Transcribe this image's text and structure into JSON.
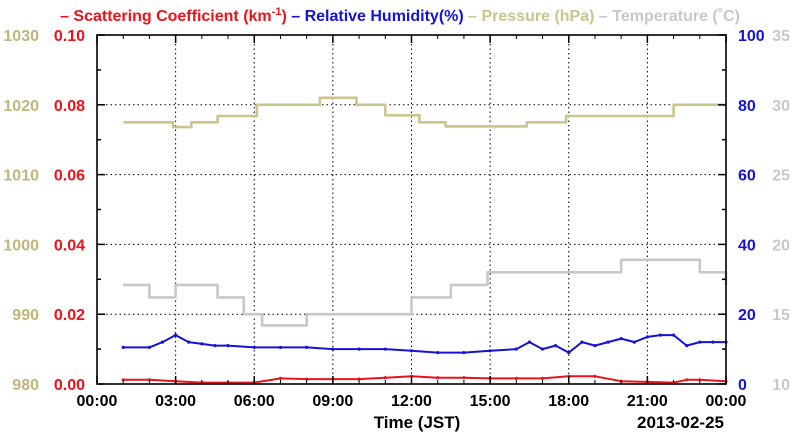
{
  "chart_data": {
    "type": "line",
    "legend": [
      {
        "key": "scat",
        "text": "Scattering Coefficient (km",
        "sup": "-1",
        "tail": ")",
        "color": "#e8141c"
      },
      {
        "key": "rh",
        "text": "Relative Humidity(%)",
        "color": "#1414d2"
      },
      {
        "key": "pres",
        "text": "Pressure (hPa)",
        "color": "#cdc38c"
      },
      {
        "key": "temp",
        "text": "Temperature (˚C)",
        "color": "#c8c8c8"
      }
    ],
    "xlabel": "Time (JST)",
    "date_label": "2013-02-25",
    "x_ticks": [
      "00:00",
      "03:00",
      "06:00",
      "09:00",
      "12:00",
      "15:00",
      "18:00",
      "21:00",
      "00:00"
    ],
    "x_range": [
      0,
      24
    ],
    "grid": true,
    "axes": {
      "pressure": {
        "side": "outer-left",
        "range": [
          980,
          1030
        ],
        "ticks": [
          "980",
          "990",
          "1000",
          "1010",
          "1020",
          "1030"
        ],
        "color": "#c0b67a"
      },
      "scattering": {
        "side": "inner-left",
        "range": [
          0,
          0.1
        ],
        "ticks": [
          "0.00",
          "0.02",
          "0.04",
          "0.06",
          "0.08",
          "0.10"
        ],
        "color": "#e8141c"
      },
      "humidity": {
        "side": "inner-right",
        "range": [
          0,
          100
        ],
        "ticks": [
          "0",
          "20",
          "40",
          "60",
          "80",
          "100"
        ],
        "color": "#1414d2"
      },
      "temperature": {
        "side": "outer-right",
        "range": [
          10,
          35
        ],
        "ticks": [
          "10",
          "15",
          "20",
          "25",
          "30",
          "35"
        ],
        "color": "#c8c8c8"
      }
    },
    "series": [
      {
        "name": "Pressure (hPa)",
        "axis": "pressure",
        "color": "#cdc38c",
        "style": "step",
        "x": [
          1.0,
          2.9,
          3.6,
          4.6,
          6.1,
          8.1,
          8.5,
          9.9,
          11.0,
          12.3,
          13.3,
          15.6,
          16.4,
          17.9,
          19.3,
          20.8,
          22.0,
          24.0
        ],
        "y": [
          1017.5,
          1016.8,
          1017.5,
          1018.4,
          1020,
          1020,
          1021,
          1020,
          1018.5,
          1017.5,
          1016.9,
          1016.9,
          1017.5,
          1018.4,
          1018.4,
          1018.4,
          1020,
          1020
        ]
      },
      {
        "name": "Temperature (˚C)",
        "axis": "temperature",
        "color": "#c8c8c8",
        "style": "step",
        "x": [
          1.0,
          2.0,
          3.0,
          4.6,
          5.6,
          6.3,
          8.0,
          10.0,
          12.0,
          13.5,
          14.9,
          18.0,
          20.0,
          23.0,
          24.0
        ],
        "y": [
          17.1,
          16.2,
          17.1,
          16.2,
          15.0,
          14.2,
          15.0,
          15.0,
          16.2,
          17.1,
          18.0,
          18.0,
          18.9,
          18.0,
          17.1
        ]
      },
      {
        "name": "Relative Humidity(%)",
        "axis": "humidity",
        "color": "#1414d2",
        "style": "line",
        "x": [
          1.0,
          2.0,
          2.5,
          3.0,
          3.5,
          4.0,
          4.5,
          5.0,
          6.0,
          7.0,
          8.0,
          9.0,
          10.0,
          11.0,
          12.0,
          13.0,
          14.0,
          15.0,
          16.0,
          16.5,
          17.0,
          17.5,
          18.0,
          18.5,
          19.0,
          19.5,
          20.0,
          20.5,
          21.0,
          21.5,
          22.0,
          22.5,
          23.0,
          23.5,
          24.0
        ],
        "y": [
          10.5,
          10.5,
          12.0,
          14.0,
          12.0,
          11.5,
          11.0,
          11.0,
          10.5,
          10.5,
          10.5,
          10.0,
          10.0,
          10.0,
          9.5,
          9.0,
          9.0,
          9.5,
          10.0,
          12.0,
          10.0,
          11.0,
          9.0,
          12.0,
          11.0,
          12.0,
          13.0,
          12.0,
          13.5,
          14.0,
          14.0,
          11.0,
          12.0,
          12.0,
          12.0
        ]
      },
      {
        "name": "Scattering Coefficient",
        "axis": "scattering",
        "color": "#e8141c",
        "style": "line",
        "x": [
          1.0,
          2.0,
          3.0,
          4.0,
          5.0,
          6.0,
          7.0,
          8.0,
          9.0,
          10.0,
          11.0,
          12.0,
          13.0,
          14.0,
          15.0,
          16.0,
          17.0,
          18.0,
          19.0,
          20.0,
          21.0,
          22.0,
          22.5,
          23.0,
          24.0
        ],
        "y": [
          0.0012,
          0.0012,
          0.0008,
          0.0004,
          0.0004,
          0.0004,
          0.0016,
          0.0014,
          0.0014,
          0.0014,
          0.0018,
          0.0022,
          0.0018,
          0.0018,
          0.0016,
          0.0016,
          0.0016,
          0.0022,
          0.0022,
          0.0008,
          0.0006,
          0.0004,
          0.0012,
          0.0012,
          0.0008
        ]
      }
    ]
  }
}
